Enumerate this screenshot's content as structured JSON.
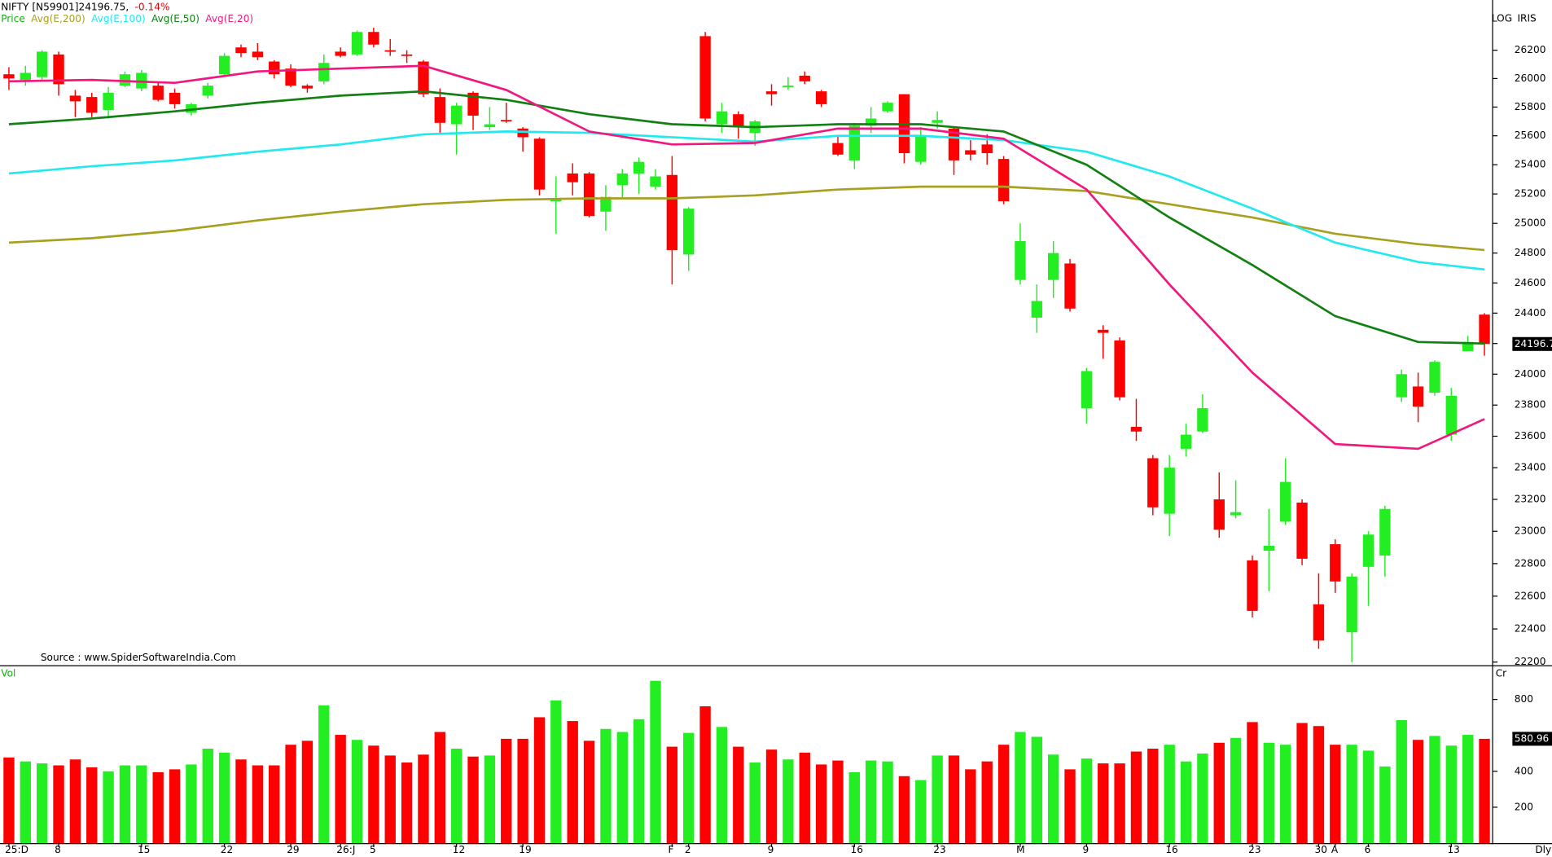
{
  "header": {
    "symbol": "NIFTY [N59901]24196.75,",
    "change": "-0.14%",
    "scale": "LOG",
    "provider": "IRIS",
    "source": "Source : www.SpiderSoftwareIndia.Com",
    "period": "Dly"
  },
  "chart_data": [
    {
      "type": "candlestick",
      "log": true,
      "ylim": [
        22160,
        26360
      ],
      "yticks": [
        22200,
        22400,
        22600,
        22800,
        23000,
        23200,
        23400,
        23600,
        23800,
        24000,
        24200,
        24400,
        24600,
        24800,
        25000,
        25200,
        25400,
        25600,
        25800,
        26000,
        26200
      ],
      "categories": [
        "25:D",
        null,
        null,
        "8",
        null,
        null,
        null,
        null,
        "15",
        null,
        null,
        null,
        null,
        "22",
        null,
        null,
        null,
        "29",
        null,
        null,
        "26:J",
        null,
        "5",
        null,
        null,
        null,
        null,
        "12",
        null,
        null,
        null,
        "19",
        null,
        null,
        null,
        null,
        null,
        null,
        null,
        null,
        "F",
        "2",
        null,
        null,
        null,
        null,
        "9",
        null,
        null,
        null,
        null,
        "16",
        null,
        null,
        null,
        null,
        "23",
        null,
        null,
        null,
        null,
        "M",
        null,
        null,
        null,
        "9",
        null,
        null,
        null,
        null,
        "16",
        null,
        null,
        null,
        null,
        "23",
        null,
        null,
        null,
        "30",
        "A",
        null,
        "6",
        null,
        null,
        null,
        null,
        "13",
        null,
        null
      ],
      "series": [
        {
          "name": "Price",
          "color": "#11b011",
          "up_color": "#22ee22",
          "down_color": "#ff0000",
          "open": [
            26030,
            25990,
            26010,
            26170,
            25880,
            25870,
            25780,
            25950,
            25930,
            25950,
            25900,
            25760,
            25880,
            26030,
            26220,
            26190,
            26120,
            26070,
            25950,
            25980,
            26190,
            26170,
            26330,
            26200,
            26170,
            26120,
            25870,
            25680,
            25900,
            25660,
            25710,
            25650,
            25580,
            25150,
            25340,
            25340,
            25080,
            25260,
            25340,
            25250,
            25330,
            24790,
            26300,
            25680,
            25750,
            25620,
            25910,
            25940,
            26020,
            25910,
            25550,
            25430,
            25670,
            25770,
            25890,
            25420,
            25690,
            25650,
            25500,
            25540,
            25440,
            24620,
            24370,
            24620,
            24730,
            23780,
            24290,
            24220,
            23660,
            23460,
            23110,
            23520,
            23630,
            23200,
            23100,
            22820,
            22880,
            23060,
            23180,
            22550,
            22920,
            22380,
            22780,
            22850,
            23850,
            23920,
            23880,
            23610,
            24150,
            24390
          ],
          "high": [
            26080,
            26090,
            26200,
            26190,
            25920,
            25900,
            25940,
            26050,
            26060,
            25980,
            25930,
            25830,
            25970,
            26180,
            26240,
            26250,
            26130,
            26100,
            25960,
            26170,
            26220,
            26340,
            26360,
            26280,
            26200,
            26130,
            25930,
            25830,
            25910,
            25800,
            25830,
            25660,
            25590,
            25320,
            25410,
            25350,
            25260,
            25370,
            25450,
            25370,
            25460,
            25110,
            26330,
            25830,
            25770,
            25710,
            25960,
            26010,
            26050,
            25920,
            25600,
            25690,
            25800,
            25840,
            25890,
            25660,
            25770,
            25660,
            25570,
            25610,
            25460,
            25000,
            24590,
            24880,
            24760,
            24040,
            24320,
            24240,
            23840,
            23480,
            23480,
            23680,
            23870,
            23370,
            23320,
            22850,
            23140,
            23460,
            23200,
            22740,
            22950,
            22740,
            23000,
            23160,
            24030,
            24010,
            24090,
            23910,
            24250,
            24400
          ],
          "low": [
            25920,
            25950,
            25980,
            25880,
            25730,
            25730,
            25720,
            25940,
            25910,
            25840,
            25790,
            25740,
            25860,
            26020,
            26150,
            26130,
            26000,
            25940,
            25900,
            25960,
            26150,
            26160,
            26220,
            26160,
            26110,
            25870,
            25620,
            25470,
            25640,
            25640,
            25690,
            25490,
            25190,
            24930,
            25190,
            25040,
            24950,
            25170,
            25200,
            25230,
            24590,
            24680,
            25700,
            25620,
            25580,
            25530,
            25810,
            25920,
            25960,
            25800,
            25460,
            25370,
            25620,
            25760,
            25410,
            25400,
            25650,
            25330,
            25430,
            25400,
            25130,
            24590,
            24270,
            24500,
            24410,
            23680,
            24100,
            23830,
            23570,
            23100,
            22970,
            23470,
            23620,
            22960,
            23080,
            22470,
            22630,
            23040,
            22790,
            22280,
            22620,
            22200,
            22540,
            22720,
            23820,
            23690,
            23860,
            23570,
            24150,
            24120
          ],
          "close": [
            26000,
            26040,
            26190,
            25960,
            25840,
            25760,
            25900,
            26030,
            26040,
            25850,
            25820,
            25820,
            25950,
            26160,
            26180,
            26150,
            26030,
            25950,
            25930,
            26110,
            26160,
            26330,
            26240,
            26190,
            26160,
            25890,
            25690,
            25810,
            25740,
            25680,
            25700,
            25590,
            25230,
            25170,
            25280,
            25050,
            25180,
            25340,
            25420,
            25320,
            24820,
            25100,
            25720,
            25770,
            25660,
            25700,
            25890,
            25950,
            25980,
            25820,
            25470,
            25670,
            25720,
            25830,
            25480,
            25600,
            25710,
            25430,
            25470,
            25480,
            25150,
            24880,
            24480,
            24800,
            24430,
            24020,
            24270,
            23850,
            23630,
            23150,
            23400,
            23610,
            23780,
            23010,
            23120,
            22510,
            22910,
            23310,
            22830,
            22330,
            22690,
            22720,
            22980,
            23140,
            24000,
            23790,
            24080,
            23860,
            24210,
            24196.75
          ],
          "last_label": "24196.7"
        }
      ],
      "lines": [
        {
          "name": "Avg(E,200)",
          "color": "#a8a020",
          "x": [
            0,
            5,
            10,
            15,
            20,
            25,
            30,
            35,
            40,
            45,
            50,
            55,
            60,
            65,
            70,
            75,
            80,
            85,
            89
          ],
          "values": [
            24870,
            24900,
            24950,
            25020,
            25080,
            25130,
            25160,
            25170,
            25170,
            25190,
            25230,
            25250,
            25250,
            25220,
            25130,
            25040,
            24930,
            24860,
            24820
          ]
        },
        {
          "name": "Avg(E,100)",
          "color": "#22e8f0",
          "x": [
            0,
            5,
            10,
            15,
            20,
            25,
            30,
            35,
            40,
            45,
            50,
            55,
            60,
            65,
            70,
            75,
            80,
            85,
            89
          ],
          "values": [
            25340,
            25390,
            25430,
            25490,
            25540,
            25610,
            25630,
            25620,
            25590,
            25560,
            25600,
            25600,
            25570,
            25490,
            25320,
            25100,
            24870,
            24740,
            24690
          ]
        },
        {
          "name": "Avg(E,50)",
          "color": "#128012",
          "x": [
            0,
            5,
            10,
            15,
            20,
            25,
            30,
            35,
            40,
            45,
            50,
            55,
            60,
            65,
            70,
            75,
            80,
            85,
            89
          ],
          "values": [
            25680,
            25720,
            25770,
            25830,
            25880,
            25910,
            25850,
            25750,
            25680,
            25660,
            25680,
            25680,
            25630,
            25400,
            25040,
            24720,
            24380,
            24210,
            24200
          ]
        },
        {
          "name": "Avg(E,20)",
          "color": "#f0187e",
          "x": [
            0,
            5,
            10,
            15,
            20,
            25,
            30,
            35,
            40,
            45,
            50,
            55,
            60,
            65,
            70,
            75,
            80,
            85,
            89
          ],
          "values": [
            25980,
            25990,
            25970,
            26050,
            26070,
            26090,
            25920,
            25630,
            25540,
            25550,
            25650,
            25650,
            25580,
            25230,
            24590,
            24010,
            23550,
            23520,
            23710
          ]
        }
      ]
    },
    {
      "type": "bar",
      "name": "Vol",
      "unit": "Cr",
      "ylim": [
        0,
        960
      ],
      "yticks": [
        200,
        400,
        800
      ],
      "values": [
        477,
        455,
        444,
        433,
        466,
        422,
        400,
        433,
        433,
        395,
        411,
        438,
        526,
        504,
        466,
        433,
        433,
        548,
        570,
        767,
        603,
        575,
        543,
        488,
        449,
        493,
        619,
        526,
        482,
        488,
        581,
        581,
        701,
        795,
        680,
        570,
        636,
        619,
        690,
        904,
        537,
        614,
        762,
        647,
        537,
        449,
        521,
        466,
        504,
        438,
        460,
        395,
        460,
        455,
        373,
        351,
        488,
        488,
        411,
        455,
        548,
        619,
        592,
        493,
        411,
        471,
        444,
        444,
        510,
        526,
        548,
        455,
        499,
        559,
        586,
        674,
        559,
        548,
        669,
        652,
        548,
        548,
        515,
        427,
        685,
        575,
        597,
        543,
        603,
        580.96
      ]
    }
  ]
}
